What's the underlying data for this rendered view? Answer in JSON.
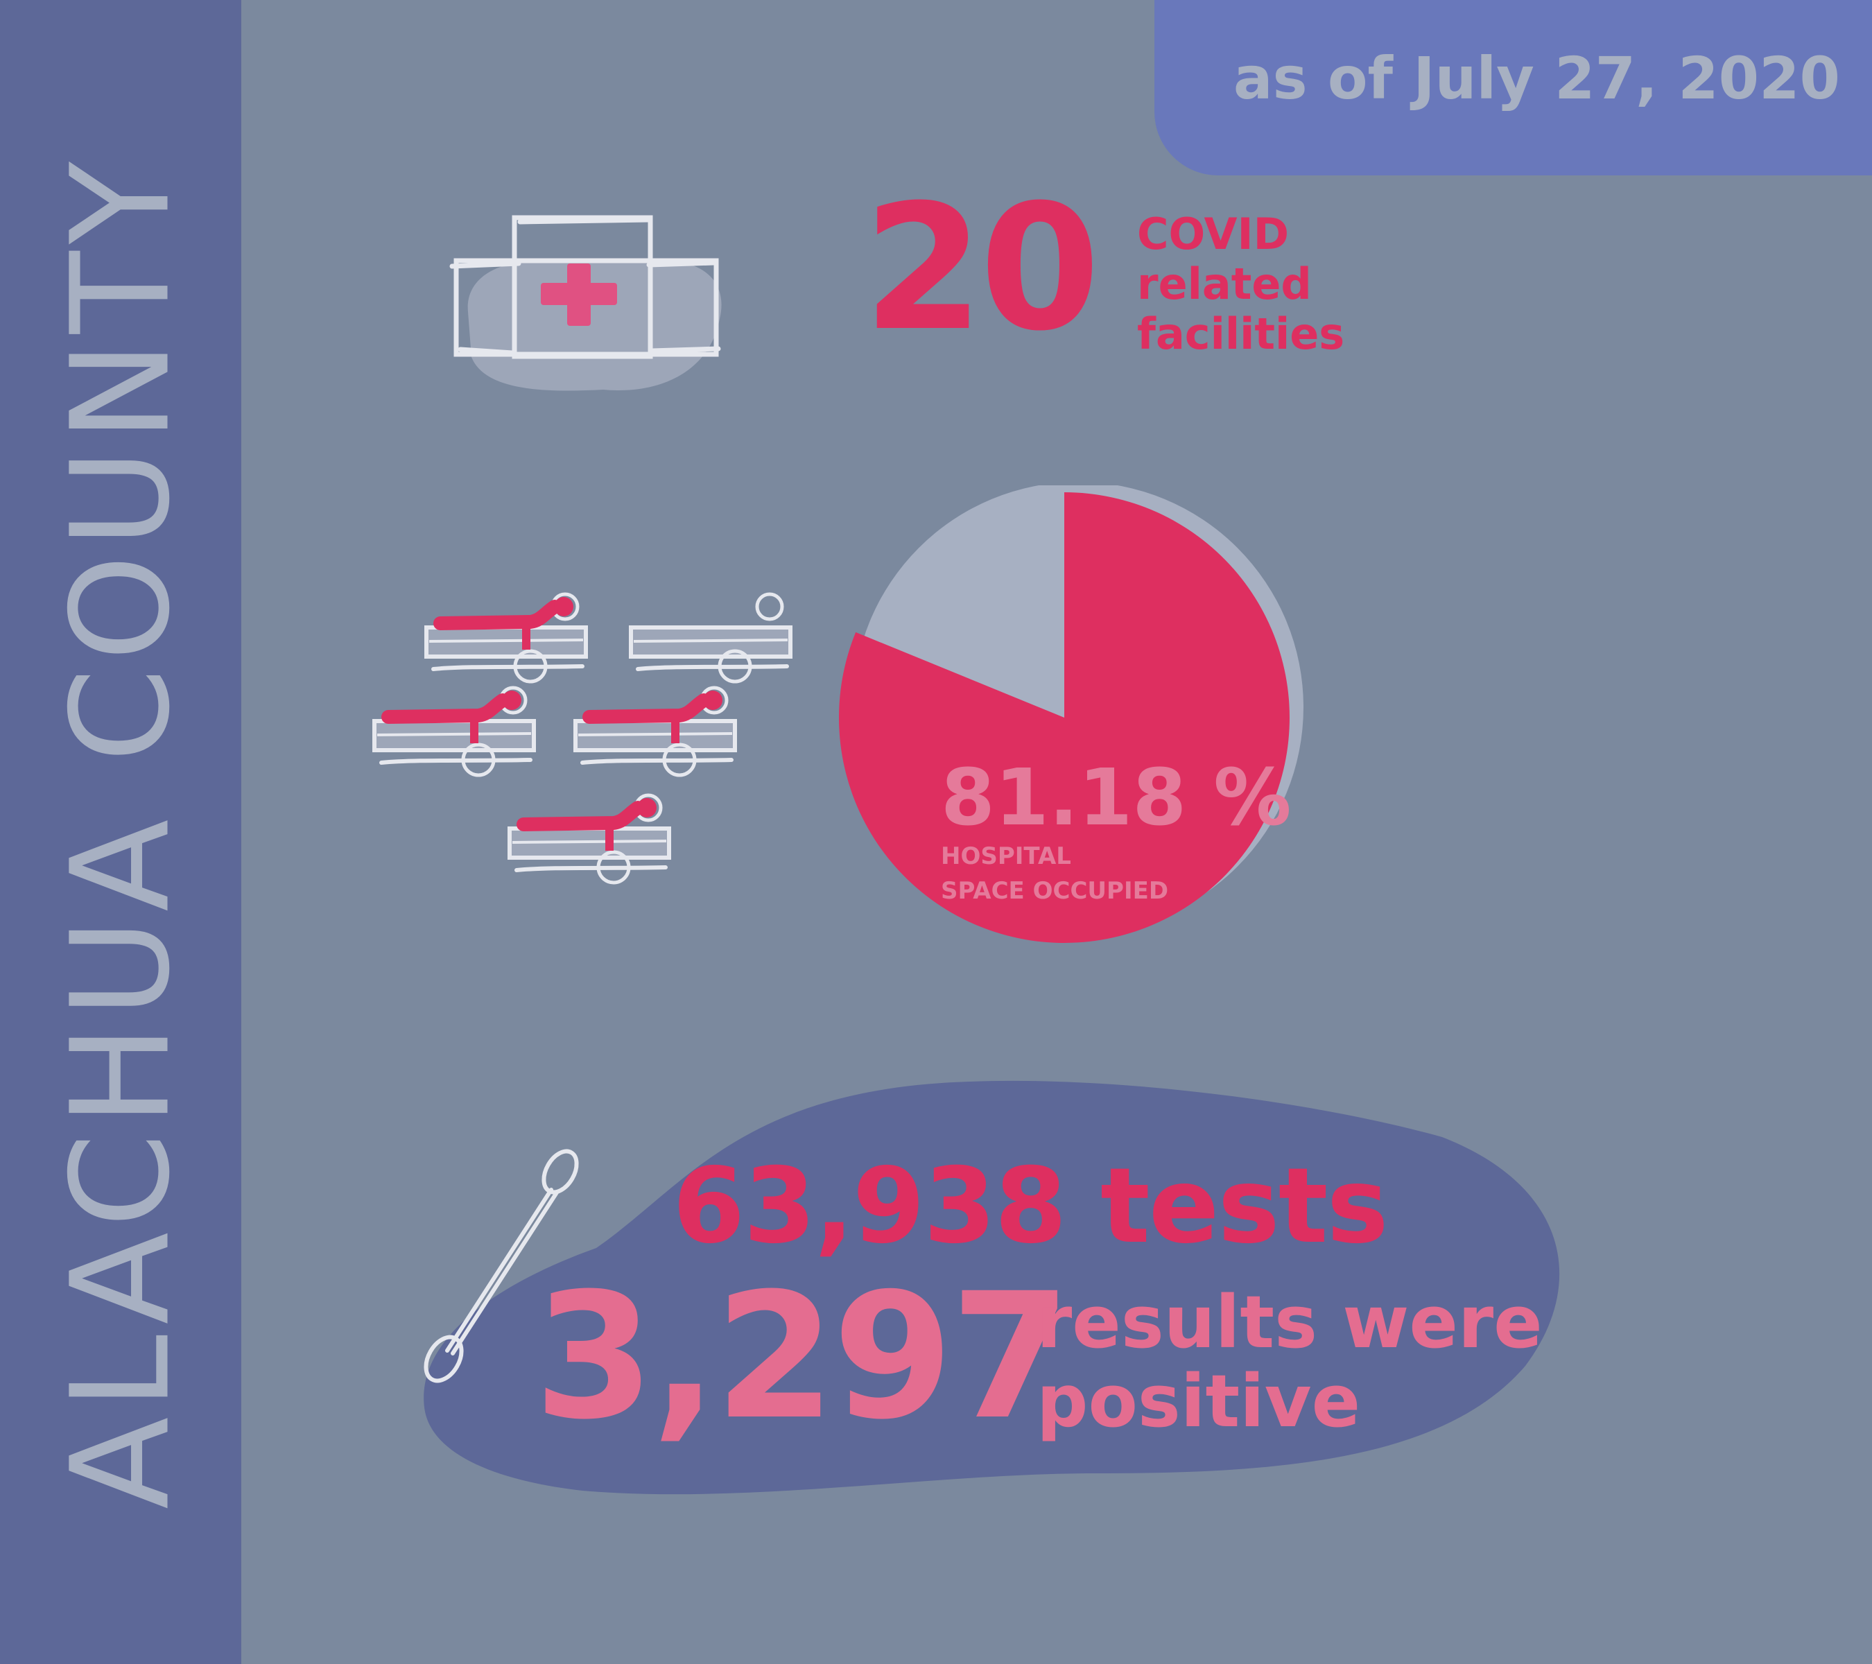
{
  "sidebar": {
    "county": "ALACHUA COUNTY"
  },
  "header": {
    "date": "as of July 27, 2020"
  },
  "facilities": {
    "count": "20",
    "label_line1": "COVID",
    "label_line2": "related",
    "label_line3": "facilities"
  },
  "hospital": {
    "occupied_percent": 81.18,
    "percent_text": "81.18 %",
    "label_line1": "HOSPITAL",
    "label_line2": "SPACE OCCUPIED"
  },
  "testing": {
    "tests_text": "63,938 tests",
    "positive_count": "3,297",
    "positive_line1": "results were",
    "positive_line2": "positive"
  },
  "colors": {
    "background": "#7b899e",
    "sidebar": "#5d6898",
    "date_tab": "#6978bb",
    "accent_pink": "#de2f60",
    "soft_pink": "#e46d90",
    "muted_text": "#a7b0c2"
  },
  "icons": [
    "hospital-building-icon",
    "hospital-bed-icon",
    "cotton-swab-icon"
  ]
}
